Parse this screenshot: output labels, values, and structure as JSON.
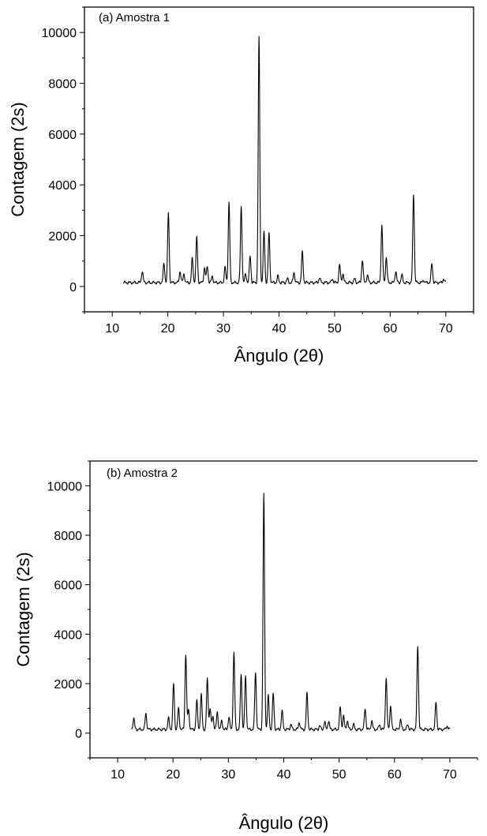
{
  "chart_data": [
    {
      "type": "line",
      "title": "(a) Amostra 1",
      "xlabel": "Ângulo (2θ)",
      "ylabel": "Contagem (2s)",
      "xlim": [
        5,
        75
      ],
      "ylim": [
        -1000,
        11000
      ],
      "x_ticks": [
        10,
        20,
        30,
        40,
        50,
        60,
        70
      ],
      "y_ticks": [
        0,
        2000,
        4000,
        6000,
        8000,
        10000
      ],
      "grid": false,
      "legend": "none",
      "series": [
        {
          "x_start": 12,
          "x_end": 70,
          "baseline": 150,
          "peaks": [
            [
              15.4,
              600
            ],
            [
              19.3,
              900
            ],
            [
              20.1,
              2900
            ],
            [
              22.2,
              600
            ],
            [
              22.9,
              500
            ],
            [
              24.4,
              1100
            ],
            [
              25.2,
              1950
            ],
            [
              26.6,
              750
            ],
            [
              27.1,
              800
            ],
            [
              28.0,
              400
            ],
            [
              30.3,
              750
            ],
            [
              31.0,
              3300
            ],
            [
              33.2,
              3150
            ],
            [
              34.0,
              500
            ],
            [
              34.8,
              1200
            ],
            [
              36.4,
              9800
            ],
            [
              37.3,
              2150
            ],
            [
              38.2,
              2100
            ],
            [
              39.8,
              400
            ],
            [
              41.5,
              300
            ],
            [
              42.7,
              550
            ],
            [
              44.2,
              1350
            ],
            [
              47.3,
              350
            ],
            [
              49.6,
              300
            ],
            [
              50.9,
              850
            ],
            [
              51.5,
              500
            ],
            [
              53.6,
              300
            ],
            [
              55.0,
              1050
            ],
            [
              55.9,
              450
            ],
            [
              58.5,
              2400
            ],
            [
              59.3,
              1150
            ],
            [
              61.0,
              600
            ],
            [
              62.1,
              450
            ],
            [
              64.2,
              3650
            ],
            [
              66.0,
              250
            ],
            [
              67.5,
              900
            ],
            [
              69.6,
              300
            ]
          ]
        }
      ]
    },
    {
      "type": "line",
      "title": "(b) Amostra 2",
      "xlabel": "Ângulo (2θ)",
      "ylabel": "Contagem (2s)",
      "xlim": [
        5,
        75
      ],
      "ylim": [
        -1000,
        11000
      ],
      "x_ticks": [
        10,
        20,
        30,
        40,
        50,
        60,
        70
      ],
      "y_ticks": [
        0,
        2000,
        4000,
        6000,
        8000,
        10000
      ],
      "grid": false,
      "legend": "none",
      "series": [
        {
          "x_start": 12.5,
          "x_end": 70,
          "baseline": 150,
          "peaks": [
            [
              12.9,
              600
            ],
            [
              15.1,
              800
            ],
            [
              19.2,
              600
            ],
            [
              20.1,
              2000
            ],
            [
              21.0,
              1000
            ],
            [
              22.3,
              3200
            ],
            [
              22.8,
              950
            ],
            [
              24.3,
              1300
            ],
            [
              25.1,
              1550
            ],
            [
              26.2,
              2200
            ],
            [
              26.7,
              1000
            ],
            [
              27.2,
              700
            ],
            [
              28.0,
              850
            ],
            [
              28.8,
              500
            ],
            [
              30.1,
              650
            ],
            [
              31.0,
              3250
            ],
            [
              32.3,
              2400
            ],
            [
              33.1,
              2300
            ],
            [
              34.9,
              2450
            ],
            [
              36.4,
              9650
            ],
            [
              37.2,
              1500
            ],
            [
              38.1,
              1600
            ],
            [
              39.7,
              900
            ],
            [
              41.3,
              350
            ],
            [
              42.8,
              450
            ],
            [
              44.2,
              1600
            ],
            [
              46.5,
              300
            ],
            [
              47.4,
              450
            ],
            [
              48.1,
              500
            ],
            [
              50.2,
              1050
            ],
            [
              50.8,
              700
            ],
            [
              51.5,
              500
            ],
            [
              52.6,
              350
            ],
            [
              54.7,
              1000
            ],
            [
              55.9,
              500
            ],
            [
              57.3,
              350
            ],
            [
              58.5,
              2200
            ],
            [
              59.3,
              1100
            ],
            [
              61.1,
              550
            ],
            [
              62.4,
              350
            ],
            [
              64.2,
              3550
            ],
            [
              67.5,
              1250
            ],
            [
              69.5,
              300
            ]
          ]
        }
      ]
    }
  ]
}
